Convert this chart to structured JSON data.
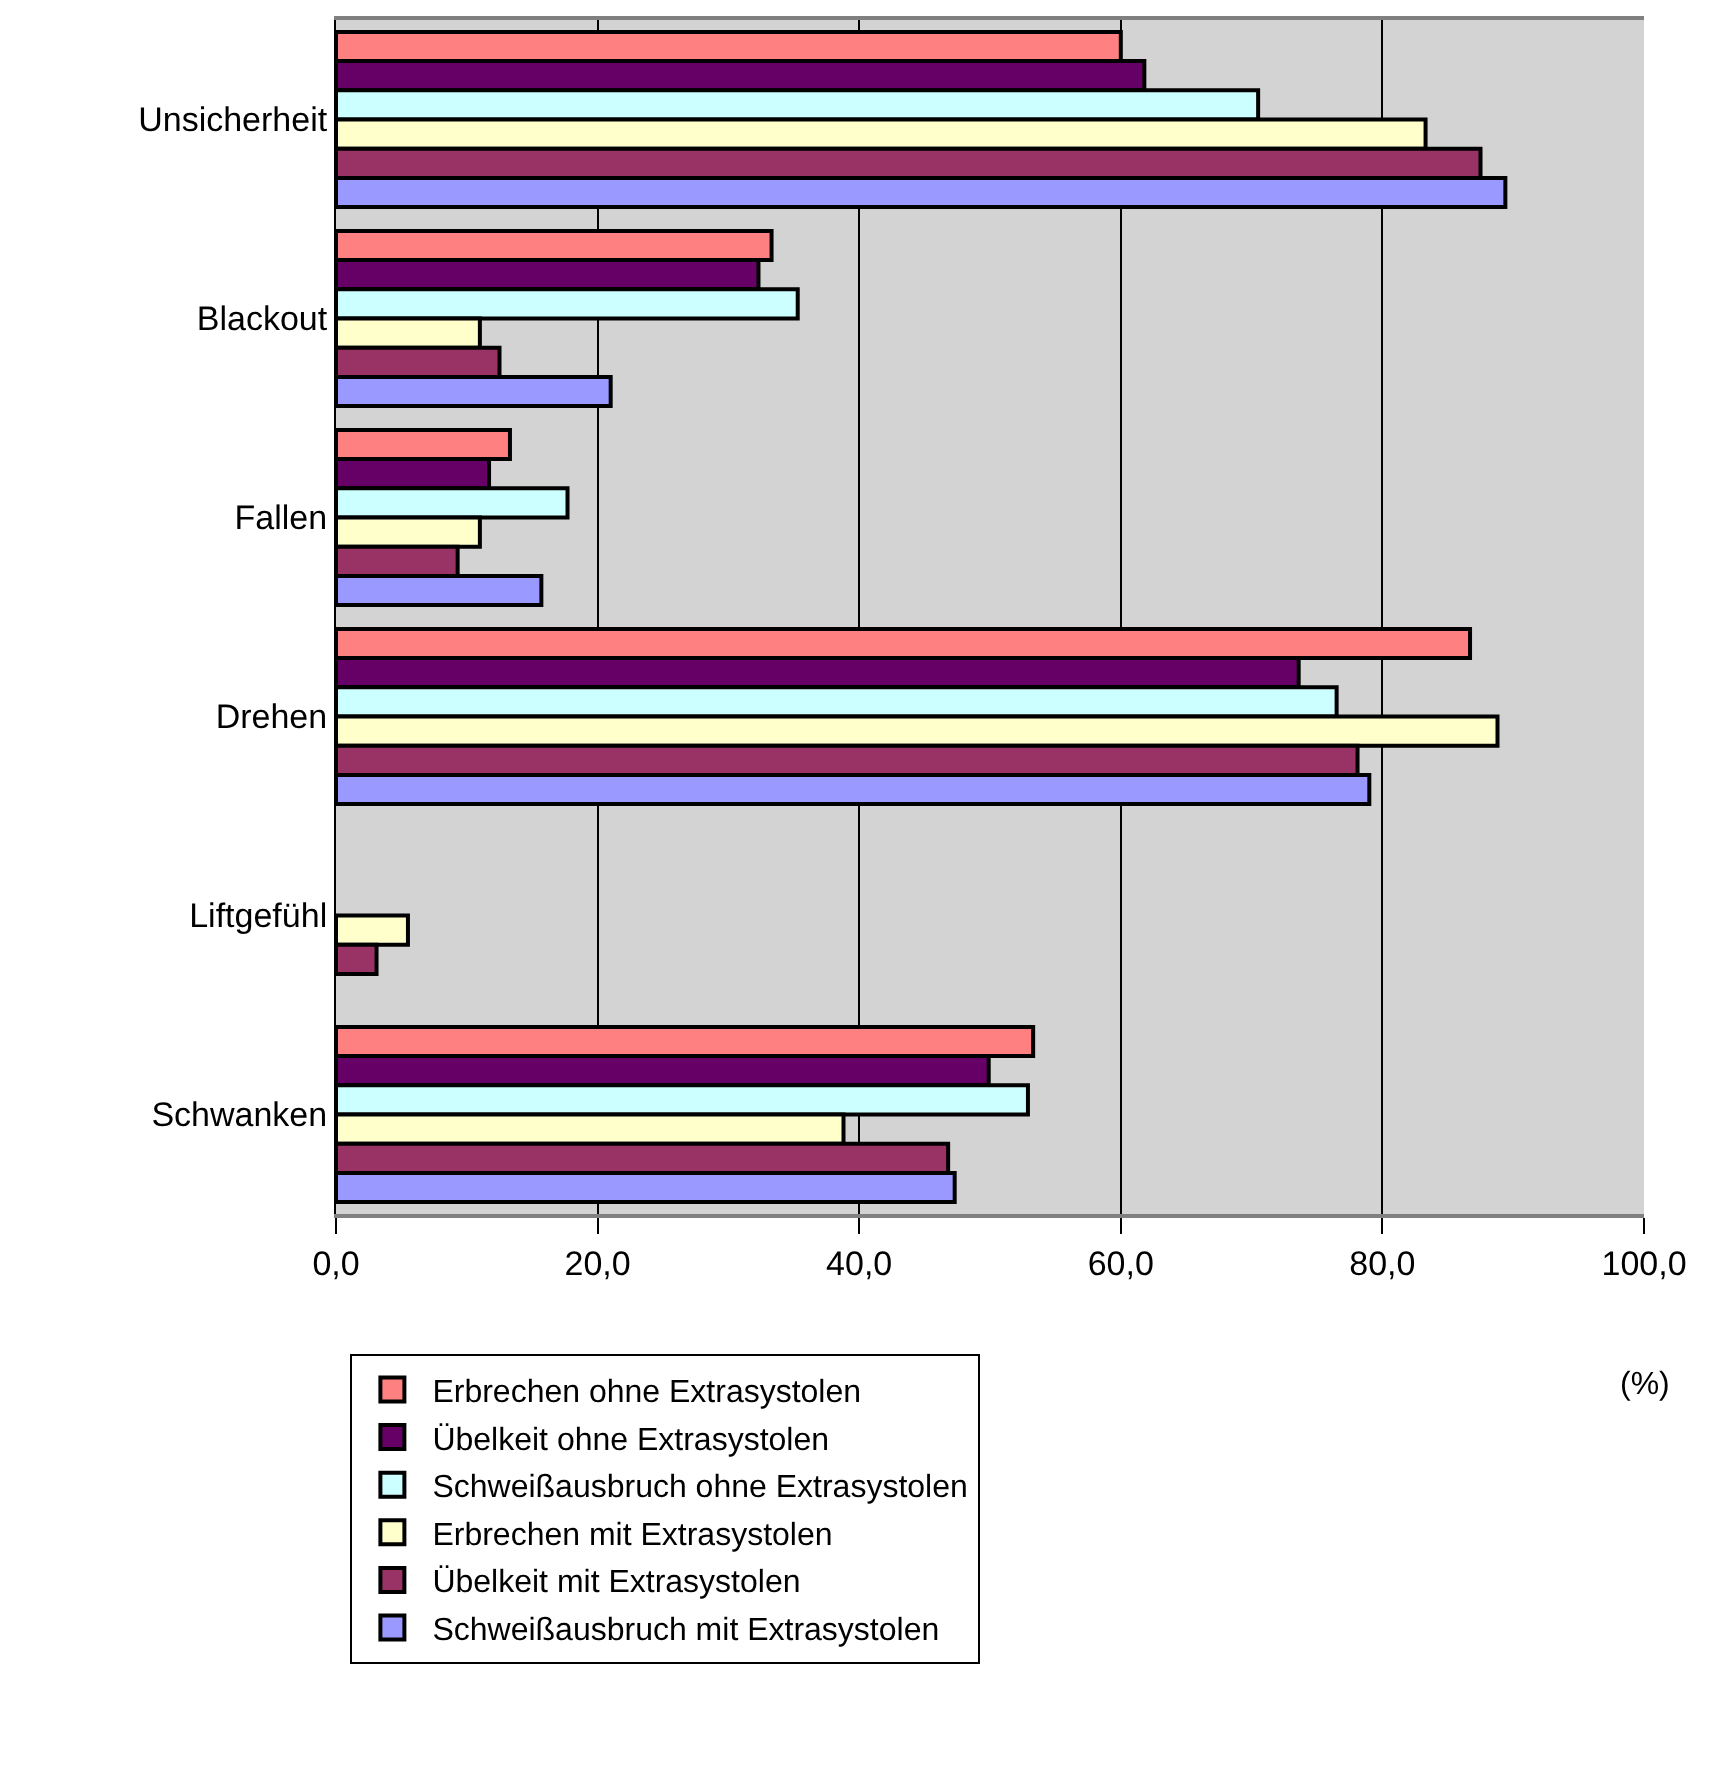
{
  "chart_data": {
    "type": "bar",
    "orientation": "horizontal",
    "categories": [
      "Unsicherheit",
      "Blackout",
      "Fallen",
      "Drehen",
      "Liftgefühl",
      "Schwanken"
    ],
    "series": [
      {
        "name": "Erbrechen ohne Extrasystolen",
        "color": "#ff8080",
        "values": [
          60.0,
          33.3,
          13.3,
          86.7,
          null,
          53.3
        ]
      },
      {
        "name": "Übelkeit ohne Extrasystolen",
        "color": "#660066",
        "values": [
          61.8,
          32.3,
          11.7,
          73.6,
          null,
          49.9
        ]
      },
      {
        "name": "Schweißausbruch ohne Extrasystolen",
        "color": "#ccffff",
        "values": [
          70.5,
          35.3,
          17.7,
          76.5,
          null,
          52.9
        ]
      },
      {
        "name": "Erbrechen mit Extrasystolen",
        "color": "#ffffcc",
        "values": [
          83.3,
          11.0,
          11.0,
          88.8,
          5.5,
          38.8
        ]
      },
      {
        "name": "Übelkeit mit Extrasystolen",
        "color": "#993366",
        "values": [
          87.5,
          12.5,
          9.3,
          78.1,
          3.1,
          46.8
        ]
      },
      {
        "name": "Schweißausbruch mit Extrasystolen",
        "color": "#9999ff",
        "values": [
          89.4,
          21.0,
          15.7,
          79.0,
          null,
          47.3
        ]
      }
    ],
    "xlim": [
      0,
      100
    ],
    "xticks": [
      {
        "value": 0,
        "label": "0,0"
      },
      {
        "value": 20,
        "label": "20,0"
      },
      {
        "value": 40,
        "label": "40,0"
      },
      {
        "value": 60,
        "label": "60,0"
      },
      {
        "value": 80,
        "label": "80,0"
      },
      {
        "value": 100,
        "label": "100,0"
      }
    ],
    "grid": "x",
    "legend": "bottom",
    "annotations": [
      "(%)"
    ]
  }
}
